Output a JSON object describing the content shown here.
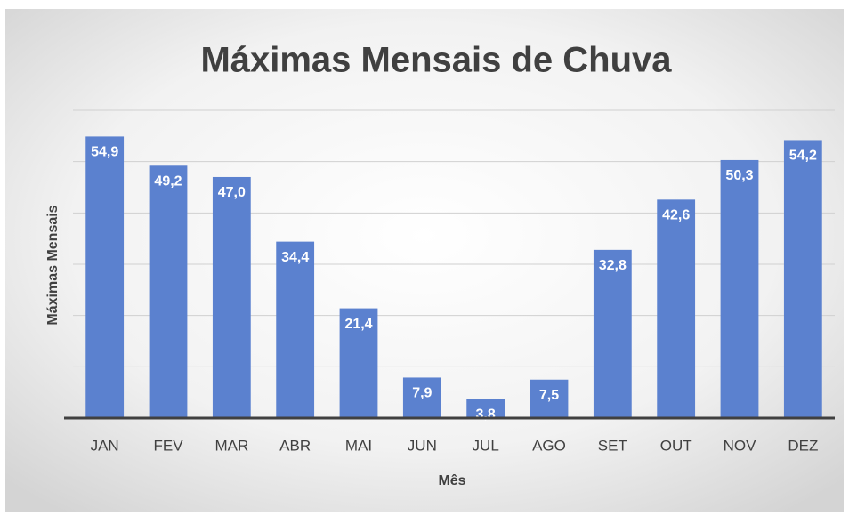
{
  "chart_data": {
    "type": "bar",
    "title": "Máximas Mensais de Chuva",
    "x_label": "Mês",
    "y_label": "Máximas Mensais",
    "categories": [
      "JAN",
      "FEV",
      "MAR",
      "ABR",
      "MAI",
      "JUN",
      "JUL",
      "AGO",
      "SET",
      "OUT",
      "NOV",
      "DEZ"
    ],
    "values": [
      54.9,
      49.2,
      47.0,
      34.4,
      21.4,
      7.9,
      3.8,
      7.5,
      32.8,
      42.6,
      50.3,
      54.2
    ],
    "value_labels": [
      "54,9",
      "49,2",
      "47,0",
      "34,4",
      "21,4",
      "7,9",
      "3,8",
      "7,5",
      "32,8",
      "42,6",
      "50,3",
      "54,2"
    ],
    "color": "#5b81cf",
    "ylim": [
      0,
      60
    ],
    "yticks": [
      0,
      10,
      20,
      30,
      40,
      50,
      60
    ],
    "ytick_labels": false,
    "grid": true
  }
}
